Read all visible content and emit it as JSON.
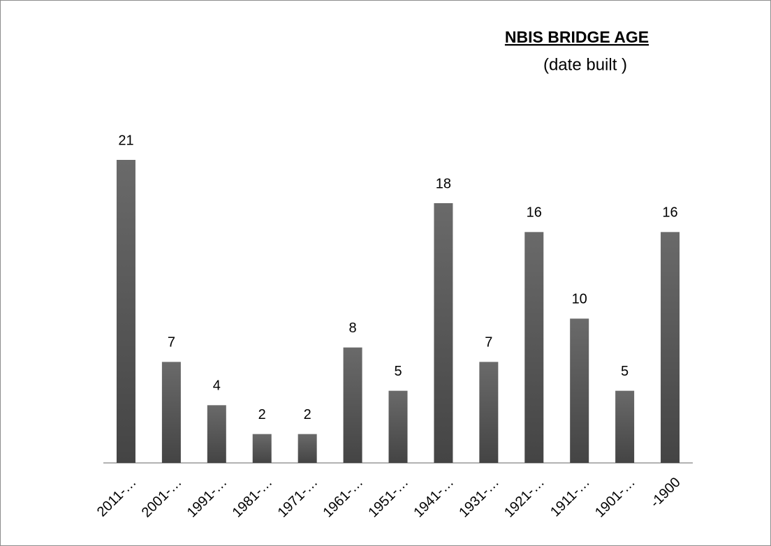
{
  "chart_data": {
    "type": "bar",
    "title": "NBIS BRIDGE  AGE",
    "subtitle": "(date built )",
    "categories": [
      "2011-…",
      "2001-…",
      "1991-…",
      "1981-…",
      "1971-…",
      "1961-…",
      "1951-…",
      "1941-…",
      "1931-…",
      "1921-…",
      "1911-…",
      "1901-…",
      "-1900"
    ],
    "values": [
      21,
      7,
      4,
      2,
      2,
      8,
      5,
      18,
      7,
      16,
      10,
      5,
      16
    ],
    "color": "#575757"
  }
}
